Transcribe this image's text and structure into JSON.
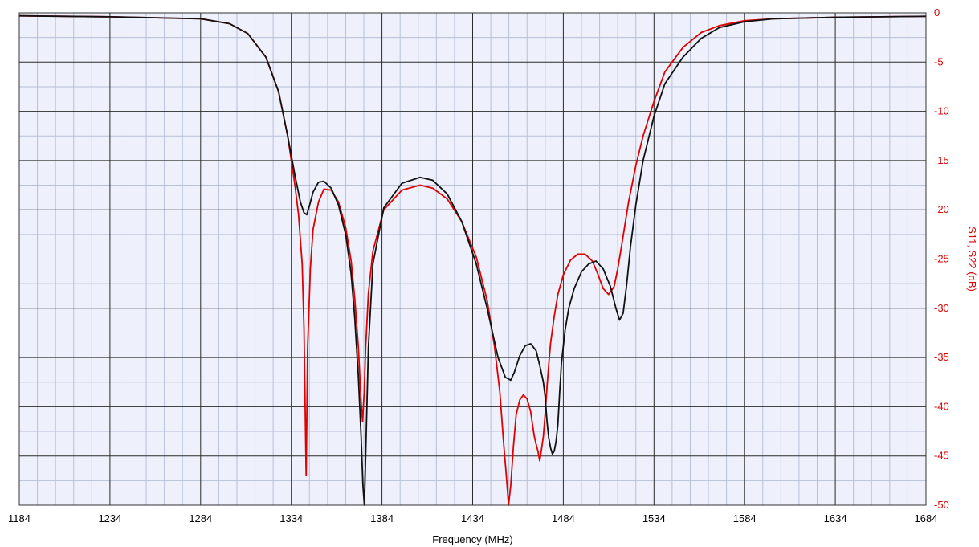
{
  "chart_data": {
    "type": "line",
    "title": "",
    "xlabel": "Frequency (MHz)",
    "ylabel_right": "S11, S22 (dB)",
    "xlim": [
      1184,
      1684
    ],
    "ylim": [
      -50,
      0
    ],
    "x_ticks": [
      "1184",
      "1234",
      "1284",
      "1334",
      "1384",
      "1434",
      "1484",
      "1534",
      "1584",
      "1634",
      "1684"
    ],
    "y_ticks": [
      "0",
      "-5",
      "-10",
      "-15",
      "-20",
      "-25",
      "-30",
      "-35",
      "-40",
      "-45",
      "-50"
    ],
    "grid": true,
    "legend": "none",
    "colors": {
      "plot_background": "#eef1fb",
      "major_grid": "#2a2a2a",
      "minor_grid": "#b7c0d8",
      "axis_text_right": "#e00000"
    },
    "series": [
      {
        "color": "#e00000",
        "x": [
          1184,
          1234,
          1284,
          1300,
          1310,
          1320,
          1327,
          1332,
          1336,
          1338,
          1340,
          1341,
          1342.2,
          1343,
          1344.5,
          1346,
          1349,
          1352,
          1356,
          1360,
          1364,
          1367,
          1369,
          1371,
          1372.5,
          1373.3,
          1374.2,
          1375,
          1376.5,
          1379,
          1385,
          1395,
          1405,
          1412,
          1420,
          1428,
          1436,
          1442,
          1446,
          1449,
          1451,
          1452.8,
          1453.8,
          1455,
          1456.5,
          1458,
          1460,
          1462,
          1464,
          1466,
          1467,
          1468,
          1469,
          1470,
          1471,
          1472,
          1473,
          1474,
          1475,
          1476,
          1477,
          1479,
          1481,
          1484,
          1488,
          1492,
          1496,
          1500,
          1503,
          1506,
          1509,
          1512,
          1514,
          1516,
          1518,
          1520,
          1524,
          1528,
          1534,
          1540,
          1550,
          1560,
          1570,
          1584,
          1600,
          1634,
          1684
        ],
        "values": [
          -0.3,
          -0.4,
          -0.6,
          -1.1,
          -2.1,
          -4.5,
          -8.0,
          -12.5,
          -17.5,
          -20.5,
          -25.5,
          -32,
          -47,
          -34,
          -26,
          -22,
          -19.2,
          -17.9,
          -18.0,
          -19.2,
          -21.8,
          -25.2,
          -29,
          -34,
          -39.5,
          -41.5,
          -38.5,
          -34,
          -28.5,
          -24.2,
          -20.0,
          -18.0,
          -17.5,
          -17.8,
          -18.9,
          -21.2,
          -24.8,
          -29.2,
          -33.8,
          -38.5,
          -43.5,
          -47.5,
          -50,
          -48,
          -44,
          -40.8,
          -39.3,
          -38.8,
          -39.2,
          -40.5,
          -41.8,
          -43.0,
          -43.8,
          -44.5,
          -45.5,
          -44.3,
          -43.0,
          -40.7,
          -38.0,
          -35.6,
          -33.5,
          -30.8,
          -28.6,
          -26.6,
          -25.1,
          -24.5,
          -24.5,
          -25.2,
          -26.5,
          -28.0,
          -28.6,
          -27.8,
          -26.0,
          -23.8,
          -21.5,
          -19.2,
          -15.5,
          -12.5,
          -9.0,
          -6.0,
          -3.5,
          -2.0,
          -1.3,
          -0.8,
          -0.6,
          -0.45,
          -0.35
        ]
      },
      {
        "color": "#111111",
        "x": [
          1184,
          1234,
          1284,
          1300,
          1310,
          1320,
          1327,
          1332,
          1336,
          1339,
          1341,
          1342.5,
          1344,
          1346,
          1349,
          1352,
          1356,
          1360,
          1364,
          1367,
          1369,
          1371,
          1372.5,
          1373.5,
          1374.3,
          1375,
          1376.5,
          1379,
          1385,
          1395,
          1405,
          1412,
          1420,
          1428,
          1436,
          1442,
          1448,
          1452,
          1455,
          1457,
          1460,
          1463,
          1466,
          1469,
          1471,
          1473,
          1474,
          1475,
          1476,
          1477,
          1478,
          1479,
          1480,
          1481,
          1482,
          1483,
          1485,
          1487,
          1490,
          1494,
          1498,
          1502,
          1506,
          1510,
          1513,
          1515,
          1517,
          1519,
          1521,
          1524,
          1528,
          1534,
          1540,
          1550,
          1560,
          1570,
          1584,
          1600,
          1634,
          1684
        ],
        "values": [
          -0.3,
          -0.4,
          -0.6,
          -1.1,
          -2.1,
          -4.5,
          -8.0,
          -12.5,
          -16.5,
          -19.2,
          -20.3,
          -20.5,
          -19.6,
          -18.2,
          -17.2,
          -17.1,
          -17.8,
          -19.5,
          -22.5,
          -26.5,
          -31,
          -37,
          -43,
          -48,
          -50,
          -45,
          -34,
          -25.5,
          -19.8,
          -17.3,
          -16.7,
          -17.0,
          -18.4,
          -21.2,
          -25.5,
          -30.0,
          -35.0,
          -37.0,
          -37.3,
          -36.5,
          -34.8,
          -33.8,
          -33.6,
          -34.3,
          -35.8,
          -37.5,
          -39.0,
          -41.5,
          -43.2,
          -44.2,
          -44.8,
          -44.5,
          -43.5,
          -41.8,
          -38.5,
          -35.5,
          -32.2,
          -30.0,
          -28.0,
          -26.3,
          -25.5,
          -25.2,
          -26.0,
          -27.8,
          -30.0,
          -31.2,
          -30.5,
          -27.5,
          -23.8,
          -19.5,
          -15.0,
          -10.5,
          -7.2,
          -4.5,
          -2.6,
          -1.5,
          -0.9,
          -0.6,
          -0.45,
          -0.35
        ]
      }
    ]
  }
}
